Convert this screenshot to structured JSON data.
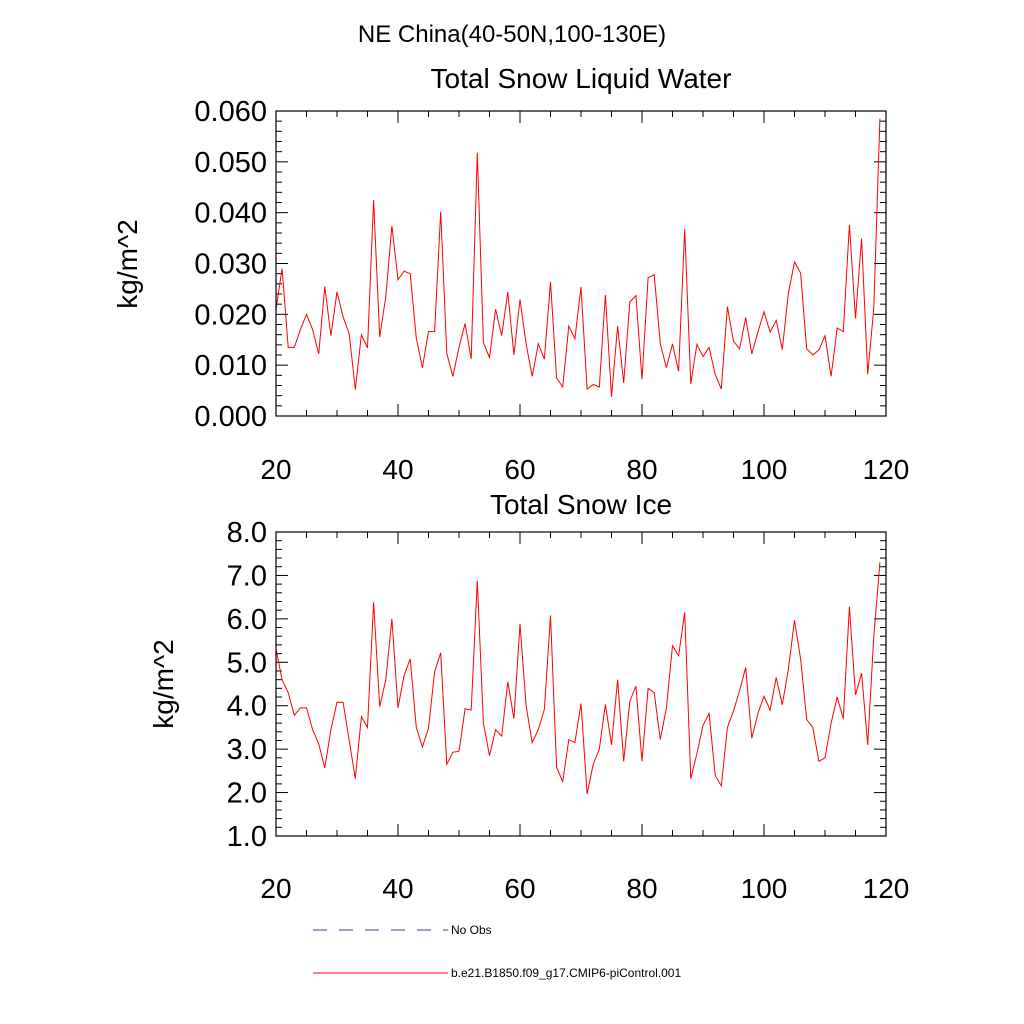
{
  "page_title": "NE China(40-50N,100-130E)",
  "chart_data": [
    {
      "type": "line",
      "title": "Total Snow Liquid Water",
      "xlabel": "",
      "ylabel": "kg/m^2",
      "xlim": [
        20,
        120
      ],
      "ylim": [
        0.0,
        0.06
      ],
      "grid": false,
      "xticks": [
        20,
        40,
        60,
        80,
        100,
        120
      ],
      "xtick_labels": [
        "20",
        "40",
        "60",
        "80",
        "100",
        "120"
      ],
      "yticks": [
        0.0,
        0.01,
        0.02,
        0.03,
        0.04,
        0.05,
        0.06
      ],
      "ytick_labels": [
        "0.000",
        "0.010",
        "0.020",
        "0.030",
        "0.040",
        "0.050",
        "0.060"
      ],
      "series": [
        {
          "name": "b.e21.B1850.f09_g17.CMIP6-piControl.001",
          "color": "#ff0000",
          "x": [
            20,
            21,
            22,
            23,
            24,
            25,
            26,
            27,
            28,
            29,
            30,
            31,
            32,
            33,
            34,
            35,
            36,
            37,
            38,
            39,
            40,
            41,
            42,
            43,
            44,
            45,
            46,
            47,
            48,
            49,
            50,
            51,
            52,
            53,
            54,
            55,
            56,
            57,
            58,
            59,
            60,
            61,
            62,
            63,
            64,
            65,
            66,
            67,
            68,
            69,
            70,
            71,
            72,
            73,
            74,
            75,
            76,
            77,
            78,
            79,
            80,
            81,
            82,
            83,
            84,
            85,
            86,
            87,
            88,
            89,
            90,
            91,
            92,
            93,
            94,
            95,
            96,
            97,
            98,
            99,
            100,
            101,
            102,
            103,
            104,
            105,
            106,
            107,
            108,
            109,
            110,
            111,
            112,
            113,
            114,
            115,
            116,
            117,
            118,
            119
          ],
          "y": [
            0.021,
            0.029,
            0.0135,
            0.0135,
            0.017,
            0.02,
            0.017,
            0.0122,
            0.0255,
            0.0158,
            0.0244,
            0.0195,
            0.0162,
            0.0052,
            0.016,
            0.0134,
            0.0425,
            0.0155,
            0.0235,
            0.0374,
            0.0268,
            0.0285,
            0.028,
            0.0153,
            0.0095,
            0.0166,
            0.0166,
            0.0402,
            0.0123,
            0.0078,
            0.0135,
            0.0182,
            0.0112,
            0.0518,
            0.0145,
            0.0115,
            0.021,
            0.0158,
            0.0244,
            0.012,
            0.0229,
            0.0142,
            0.0078,
            0.0142,
            0.0112,
            0.0264,
            0.0075,
            0.0057,
            0.0177,
            0.0152,
            0.0254,
            0.0053,
            0.0062,
            0.0057,
            0.0238,
            0.0038,
            0.0177,
            0.0065,
            0.0224,
            0.0237,
            0.0072,
            0.0272,
            0.0278,
            0.0142,
            0.0095,
            0.0142,
            0.0088,
            0.0368,
            0.0063,
            0.0141,
            0.0117,
            0.0135,
            0.0082,
            0.0053,
            0.0215,
            0.0147,
            0.0132,
            0.0194,
            0.0122,
            0.0165,
            0.0205,
            0.0165,
            0.0188,
            0.0131,
            0.0242,
            0.0303,
            0.0281,
            0.0132,
            0.012,
            0.013,
            0.0158,
            0.0078,
            0.0173,
            0.0166,
            0.0376,
            0.0192,
            0.0349,
            0.0082,
            0.0212,
            0.0585
          ]
        }
      ]
    },
    {
      "type": "line",
      "title": "Total Snow Ice",
      "xlabel": "",
      "ylabel": "kg/m^2",
      "xlim": [
        20,
        120
      ],
      "ylim": [
        1.0,
        8.0
      ],
      "grid": false,
      "xticks": [
        20,
        40,
        60,
        80,
        100,
        120
      ],
      "xtick_labels": [
        "20",
        "40",
        "60",
        "80",
        "100",
        "120"
      ],
      "yticks": [
        1.0,
        2.0,
        3.0,
        4.0,
        5.0,
        6.0,
        7.0,
        8.0
      ],
      "ytick_labels": [
        "1.0",
        "2.0",
        "3.0",
        "4.0",
        "5.0",
        "6.0",
        "7.0",
        "8.0"
      ],
      "series": [
        {
          "name": "b.e21.B1850.f09_g17.CMIP6-piControl.001",
          "color": "#ff0000",
          "x": [
            20,
            21,
            22,
            23,
            24,
            25,
            26,
            27,
            28,
            29,
            30,
            31,
            32,
            33,
            34,
            35,
            36,
            37,
            38,
            39,
            40,
            41,
            42,
            43,
            44,
            45,
            46,
            47,
            48,
            49,
            50,
            51,
            52,
            53,
            54,
            55,
            56,
            57,
            58,
            59,
            60,
            61,
            62,
            63,
            64,
            65,
            66,
            67,
            68,
            69,
            70,
            71,
            72,
            73,
            74,
            75,
            76,
            77,
            78,
            79,
            80,
            81,
            82,
            83,
            84,
            85,
            86,
            87,
            88,
            89,
            90,
            91,
            92,
            93,
            94,
            95,
            96,
            97,
            98,
            99,
            100,
            101,
            102,
            103,
            104,
            105,
            106,
            107,
            108,
            109,
            110,
            111,
            112,
            113,
            114,
            115,
            116,
            117,
            118,
            119
          ],
          "y": [
            5.3,
            4.6,
            4.3,
            3.78,
            3.95,
            3.95,
            3.45,
            3.12,
            2.57,
            3.45,
            4.08,
            4.08,
            3.2,
            2.32,
            3.75,
            3.5,
            6.38,
            3.98,
            4.6,
            6.0,
            3.95,
            4.7,
            5.08,
            3.5,
            3.05,
            3.48,
            4.78,
            5.22,
            2.65,
            2.93,
            2.95,
            3.93,
            3.9,
            6.88,
            3.6,
            2.85,
            3.45,
            3.3,
            4.55,
            3.7,
            5.88,
            4.0,
            3.15,
            3.45,
            3.92,
            6.08,
            2.58,
            2.25,
            3.22,
            3.15,
            4.05,
            1.97,
            2.65,
            3.0,
            4.03,
            3.1,
            4.6,
            2.72,
            4.1,
            4.45,
            2.72,
            4.4,
            4.3,
            3.22,
            3.95,
            5.38,
            5.15,
            6.15,
            2.32,
            2.9,
            3.55,
            3.82,
            2.4,
            2.15,
            3.5,
            3.88,
            4.35,
            4.88,
            3.25,
            3.82,
            4.22,
            3.9,
            4.65,
            4.02,
            4.85,
            5.97,
            5.08,
            3.68,
            3.5,
            2.72,
            2.8,
            3.6,
            4.2,
            3.7,
            6.28,
            4.25,
            4.75,
            3.1,
            5.6,
            7.3
          ]
        }
      ]
    }
  ],
  "legend": {
    "placement": "bottom",
    "entries": [
      {
        "label": "No Obs",
        "color": "#3c3c8c",
        "style": "dashed"
      },
      {
        "label": "b.e21.B1850.f09_g17.CMIP6-piControl.001",
        "color": "#ff0000",
        "style": "solid"
      }
    ]
  }
}
